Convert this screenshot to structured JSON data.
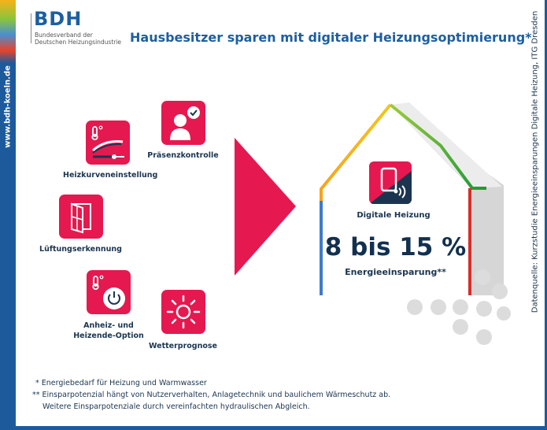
{
  "brand": {
    "url": "www.bdh-koeln.de",
    "logo": "BDH",
    "logo_sub1": "Bundesverband der",
    "logo_sub2": "Deutschen Heizungsindustrie"
  },
  "title": "Hausbesitzer sparen mit digitaler Heizungsoptimierung*",
  "features": [
    {
      "label": "Heizkurveneinstellung",
      "icon": "heating-curve-icon"
    },
    {
      "label": "Präsenzkontrolle",
      "icon": "presence-icon"
    },
    {
      "label": "Lüftungserkennung",
      "icon": "window-icon"
    },
    {
      "label_line1": "Anheiz- und",
      "label_line2": "Heizende-Option",
      "icon": "power-thermometer-icon"
    },
    {
      "label": "Wetterprognose",
      "icon": "sun-icon"
    }
  ],
  "house": {
    "label": "Digitale Heizung",
    "savings": "8 bis 15 %",
    "savings_label": "Energieeinsparung**",
    "icon": "digital-heating-icon"
  },
  "source": "Datenquelle: Kurzstudie Energieeinsparungen Digitale Heizung, ITG Dresden",
  "footnotes": [
    "* Energiebedarf für Heizung und Warmwasser",
    "** Einsparpotenzial hängt von Nutzerverhalten, Anlagetechnik und baulichem Wärmeschutz ab.",
    "Weitere Einsparpotenziale durch vereinfachten hydraulischen Abgleich."
  ],
  "colors": {
    "accent": "#e5194f",
    "brand_blue": "#1d5a9c",
    "text": "#1b3550"
  }
}
